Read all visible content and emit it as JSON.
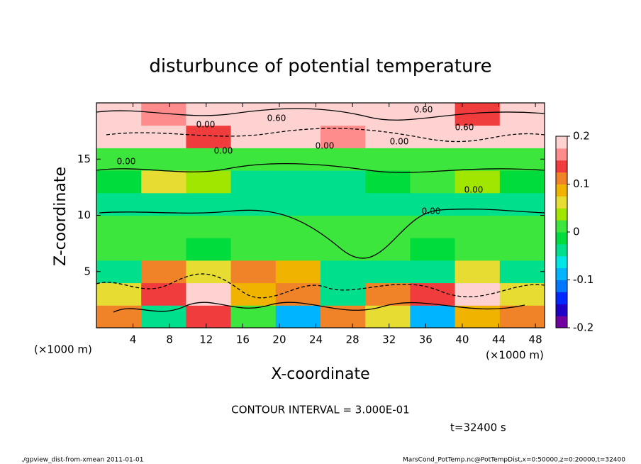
{
  "chart_data": {
    "type": "heatmap",
    "title": "disturbunce of potential temperature",
    "x_label": "X-coordinate",
    "y_label": "Z-coordinate",
    "x_unit_left": "(×1000 m)",
    "x_unit_right": "(×1000 m)",
    "contour_interval": "CONTOUR INTERVAL = 3.000E-01",
    "time_label": "t=32400 s",
    "footer_left": "./gpview_dist-from-xmean   2011-01-01",
    "footer_right": "MarsCond_PotTemp.nc@PotTempDist,x=0:50000,z=0:20000,t=32400",
    "contour_labels": [
      "0.60",
      "0.00",
      "0.60",
      "0.60",
      "0.00",
      "0.00",
      "0.00",
      "0.00",
      "0.00",
      "0.00"
    ],
    "xlim": [
      0,
      49
    ],
    "ylim": [
      0,
      20
    ],
    "xticks": [
      4,
      8,
      12,
      16,
      20,
      24,
      28,
      32,
      36,
      40,
      44,
      48
    ],
    "yticks": [
      5,
      10,
      15
    ],
    "x_edges": [
      0,
      4.9,
      9.8,
      14.7,
      19.6,
      24.5,
      29.4,
      34.3,
      39.2,
      44.1,
      49
    ],
    "z_edges": [
      0,
      2,
      4,
      6,
      8,
      10,
      12,
      14,
      16,
      18,
      20
    ],
    "values": [
      [
        0.12,
        -0.05,
        0.15,
        0.02,
        -0.08,
        0.1,
        0.05,
        -0.1,
        0.08,
        0.12
      ],
      [
        0.05,
        0.15,
        0.18,
        0.08,
        0.12,
        -0.05,
        0.1,
        0.15,
        0.2,
        0.06
      ],
      [
        -0.03,
        0.1,
        0.05,
        0.12,
        0.08,
        -0.04,
        -0.05,
        -0.03,
        0.06,
        -0.04
      ],
      [
        0.0,
        0.01,
        -0.01,
        0.0,
        0.01,
        0.02,
        0.0,
        -0.01,
        0.0,
        0.0
      ],
      [
        0.01,
        0.0,
        0.01,
        0.02,
        0.01,
        0.0,
        0.02,
        0.01,
        0.0,
        0.01
      ],
      [
        -0.04,
        -0.05,
        -0.03,
        -0.05,
        -0.05,
        -0.04,
        -0.05,
        -0.03,
        -0.04,
        -0.03
      ],
      [
        -0.02,
        0.05,
        0.03,
        -0.03,
        -0.04,
        -0.03,
        -0.02,
        0.02,
        0.04,
        -0.02
      ],
      [
        0.0,
        0.01,
        0.0,
        0.0,
        0.01,
        0.0,
        0.0,
        0.0,
        0.0,
        0.01
      ],
      [
        0.18,
        0.2,
        0.15,
        0.19,
        0.2,
        0.17,
        0.2,
        0.18,
        0.2,
        0.19
      ],
      [
        0.2,
        0.16,
        0.2,
        0.2,
        0.18,
        0.2,
        0.2,
        0.2,
        0.15,
        0.2
      ]
    ],
    "clim": [
      -0.2,
      0.2
    ],
    "cticks": [
      -0.2,
      -0.1,
      0,
      0.1,
      0.2
    ],
    "colorscale": [
      "#7000a0",
      "#1e00c8",
      "#0028ff",
      "#0078ff",
      "#00b4ff",
      "#00e6e6",
      "#00e08c",
      "#00dc3c",
      "#3ce63c",
      "#a0e600",
      "#e6dc32",
      "#f0b400",
      "#f08228",
      "#f03c3c",
      "#ff8c8c",
      "#ffd2d2"
    ]
  }
}
